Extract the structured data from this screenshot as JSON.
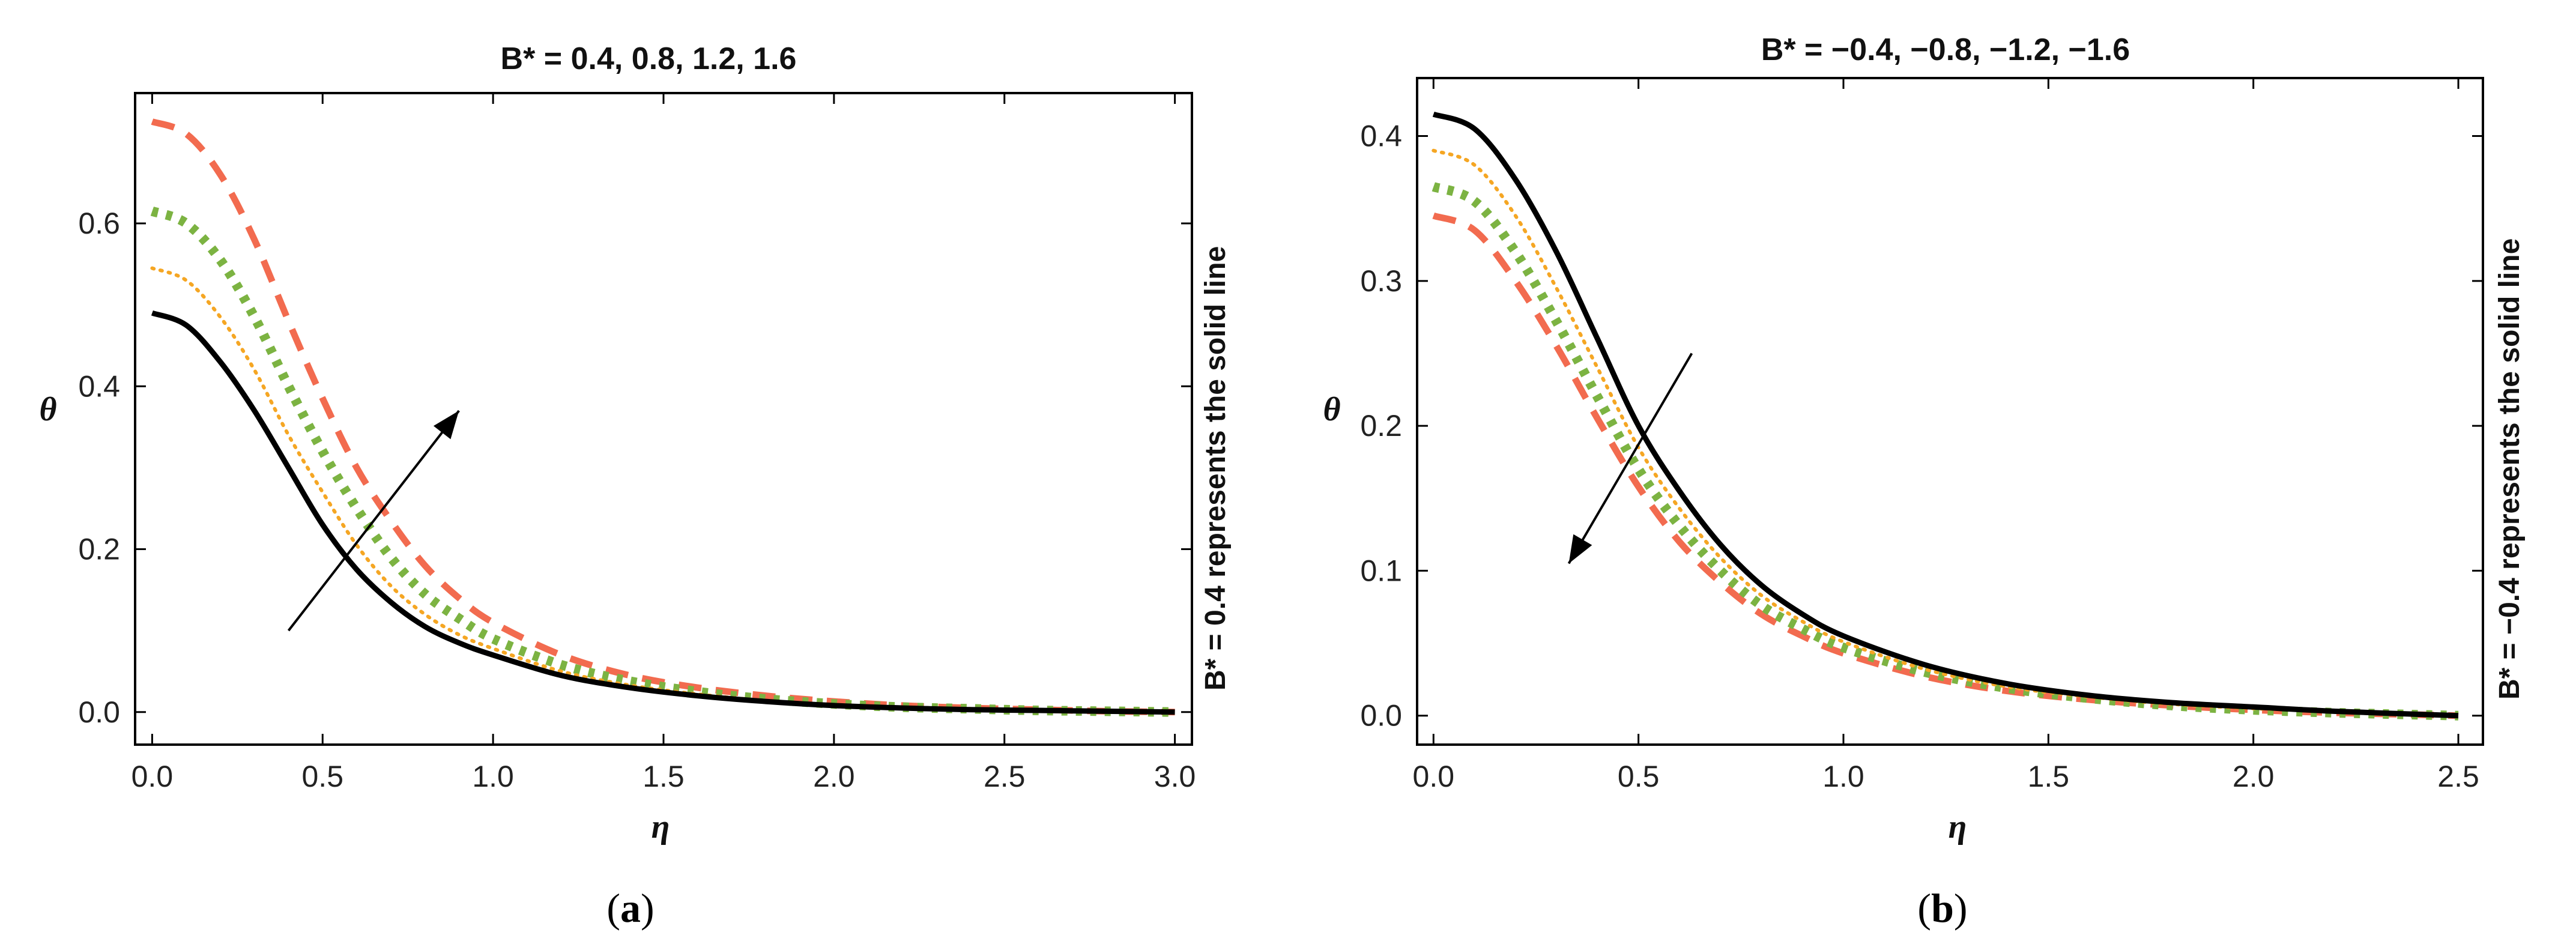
{
  "chart_data": [
    {
      "type": "line",
      "panel": "(a)",
      "title": "B* = 0.4, 0.8, 1.2, 1.6",
      "xlabel": "η",
      "ylabel": "θ",
      "side_label": "B* = 0.4 represents the solid line",
      "xlim": [
        -0.05,
        3.05
      ],
      "ylim": [
        -0.04,
        0.76
      ],
      "xticks": [
        "0.0",
        "0.5",
        "1.0",
        "1.5",
        "2.0",
        "2.5",
        "3.0"
      ],
      "yticks": [
        "0.0",
        "0.2",
        "0.4",
        "0.6"
      ],
      "trend_arrow": "increasing B*",
      "x": [
        0,
        0.1,
        0.2,
        0.3,
        0.4,
        0.5,
        0.6,
        0.7,
        0.8,
        0.9,
        1.0,
        1.2,
        1.4,
        1.6,
        1.8,
        2.0,
        2.2,
        2.4,
        2.6,
        2.8,
        3.0
      ],
      "series": [
        {
          "name": "B* = 0.4",
          "style": "solid",
          "color": "#000000",
          "values": [
            0.49,
            0.475,
            0.43,
            0.37,
            0.3,
            0.23,
            0.175,
            0.135,
            0.105,
            0.085,
            0.07,
            0.045,
            0.03,
            0.02,
            0.013,
            0.008,
            0.005,
            0.003,
            0.002,
            0.001,
            0.0
          ]
        },
        {
          "name": "B* = 0.8",
          "style": "dotted",
          "color": "#F5A623",
          "values": [
            0.545,
            0.53,
            0.485,
            0.42,
            0.34,
            0.27,
            0.205,
            0.155,
            0.12,
            0.095,
            0.078,
            0.05,
            0.033,
            0.022,
            0.014,
            0.009,
            0.006,
            0.004,
            0.002,
            0.001,
            0.0
          ]
        },
        {
          "name": "B* = 1.2",
          "style": "dotted-thick",
          "color": "#7CB342",
          "values": [
            0.615,
            0.6,
            0.555,
            0.485,
            0.4,
            0.32,
            0.25,
            0.19,
            0.145,
            0.115,
            0.09,
            0.058,
            0.038,
            0.025,
            0.016,
            0.01,
            0.006,
            0.004,
            0.002,
            0.001,
            0.0
          ]
        },
        {
          "name": "B* = 1.6",
          "style": "dashed",
          "color": "#F26B4F",
          "values": [
            0.725,
            0.71,
            0.66,
            0.58,
            0.48,
            0.385,
            0.3,
            0.235,
            0.18,
            0.14,
            0.11,
            0.07,
            0.045,
            0.03,
            0.02,
            0.013,
            0.008,
            0.005,
            0.003,
            0.001,
            0.0
          ]
        }
      ]
    },
    {
      "type": "line",
      "panel": "(b)",
      "title": "B* = −0.4, −0.8, −1.2, −1.6",
      "xlabel": "η",
      "ylabel": "θ",
      "side_label": "B* = −0.4 represents the solid line",
      "xlim": [
        -0.04,
        2.56
      ],
      "ylim": [
        -0.02,
        0.44
      ],
      "xticks": [
        "0.0",
        "0.5",
        "1.0",
        "1.5",
        "2.0",
        "2.5"
      ],
      "yticks": [
        "0.0",
        "0.1",
        "0.2",
        "0.3",
        "0.4"
      ],
      "trend_arrow": "decreasing B*",
      "x": [
        0,
        0.1,
        0.2,
        0.3,
        0.4,
        0.5,
        0.6,
        0.7,
        0.8,
        0.9,
        1.0,
        1.2,
        1.4,
        1.6,
        1.8,
        2.0,
        2.2,
        2.5
      ],
      "series": [
        {
          "name": "B* = −0.4",
          "style": "solid",
          "color": "#000000",
          "values": [
            0.415,
            0.405,
            0.37,
            0.32,
            0.26,
            0.2,
            0.155,
            0.118,
            0.09,
            0.07,
            0.055,
            0.035,
            0.022,
            0.014,
            0.009,
            0.006,
            0.003,
            0.0
          ]
        },
        {
          "name": "B* = −0.8",
          "style": "dotted",
          "color": "#F5A623",
          "values": [
            0.39,
            0.38,
            0.345,
            0.295,
            0.24,
            0.185,
            0.143,
            0.109,
            0.083,
            0.065,
            0.051,
            0.032,
            0.02,
            0.013,
            0.008,
            0.005,
            0.003,
            0.0
          ]
        },
        {
          "name": "B* = −1.2",
          "style": "dotted-thick",
          "color": "#7CB342",
          "values": [
            0.365,
            0.355,
            0.32,
            0.272,
            0.22,
            0.17,
            0.131,
            0.1,
            0.076,
            0.06,
            0.047,
            0.03,
            0.019,
            0.012,
            0.007,
            0.004,
            0.002,
            0.0
          ]
        },
        {
          "name": "B* = −1.6",
          "style": "dashed",
          "color": "#F26B4F",
          "values": [
            0.345,
            0.335,
            0.3,
            0.255,
            0.205,
            0.158,
            0.12,
            0.092,
            0.07,
            0.055,
            0.043,
            0.027,
            0.017,
            0.011,
            0.007,
            0.004,
            0.002,
            0.0
          ]
        }
      ]
    }
  ]
}
